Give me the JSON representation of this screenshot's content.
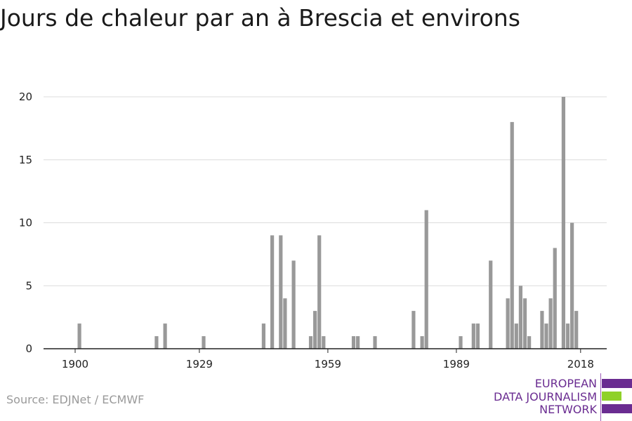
{
  "title": "Jours de chaleur par an à Brescia et environs",
  "source": "Source: EDJNet / ECMWF",
  "logo": {
    "lines": [
      "EUROPEAN",
      "DATA JOURNALISM",
      "NETWORK"
    ],
    "colors": {
      "purple": "#6a2c91",
      "green": "#8fd129"
    }
  },
  "chart_data": {
    "type": "bar",
    "title": "Jours de chaleur par an à Brescia et environs",
    "xlabel": "",
    "ylabel": "",
    "xlim": [
      1900,
      2021
    ],
    "ylim": [
      0,
      20
    ],
    "y_ticks": [
      0,
      5,
      10,
      15,
      20
    ],
    "x_ticks": [
      1900,
      1929,
      1959,
      1989,
      2018
    ],
    "grid": true,
    "bar_color": "#999999",
    "points": [
      {
        "year": 1901,
        "value": 2
      },
      {
        "year": 1919,
        "value": 1
      },
      {
        "year": 1921,
        "value": 2
      },
      {
        "year": 1930,
        "value": 1
      },
      {
        "year": 1944,
        "value": 2
      },
      {
        "year": 1946,
        "value": 9
      },
      {
        "year": 1948,
        "value": 9
      },
      {
        "year": 1949,
        "value": 4
      },
      {
        "year": 1951,
        "value": 7
      },
      {
        "year": 1955,
        "value": 1
      },
      {
        "year": 1956,
        "value": 3
      },
      {
        "year": 1957,
        "value": 9
      },
      {
        "year": 1958,
        "value": 1
      },
      {
        "year": 1965,
        "value": 1
      },
      {
        "year": 1966,
        "value": 1
      },
      {
        "year": 1970,
        "value": 1
      },
      {
        "year": 1979,
        "value": 3
      },
      {
        "year": 1981,
        "value": 1
      },
      {
        "year": 1982,
        "value": 11
      },
      {
        "year": 1990,
        "value": 1
      },
      {
        "year": 1993,
        "value": 2
      },
      {
        "year": 1994,
        "value": 2
      },
      {
        "year": 1997,
        "value": 7
      },
      {
        "year": 2001,
        "value": 4
      },
      {
        "year": 2002,
        "value": 18
      },
      {
        "year": 2003,
        "value": 2
      },
      {
        "year": 2004,
        "value": 5
      },
      {
        "year": 2005,
        "value": 4
      },
      {
        "year": 2006,
        "value": 1
      },
      {
        "year": 2009,
        "value": 3
      },
      {
        "year": 2010,
        "value": 2
      },
      {
        "year": 2011,
        "value": 4
      },
      {
        "year": 2012,
        "value": 8
      },
      {
        "year": 2014,
        "value": 20
      },
      {
        "year": 2015,
        "value": 2
      },
      {
        "year": 2016,
        "value": 10
      },
      {
        "year": 2017,
        "value": 3
      }
    ]
  }
}
